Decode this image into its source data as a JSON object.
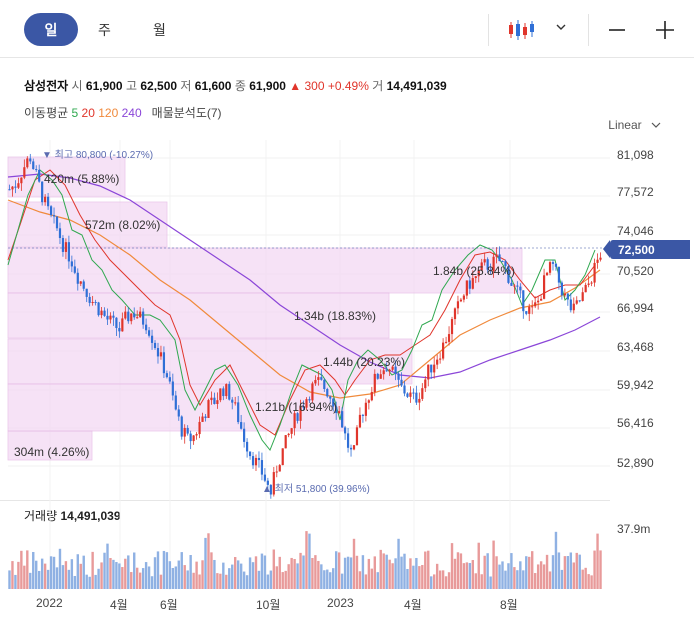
{
  "tabs": {
    "day": "일",
    "week": "주",
    "month": "월"
  },
  "stock": {
    "name": "삼성전자",
    "open_k": "시",
    "open": "61,900",
    "high_k": "고",
    "high": "62,500",
    "low_k": "저",
    "low": "61,600",
    "close_k": "종",
    "close": "61,900",
    "change": "▲ 300 +0.49%",
    "vol_k": "거",
    "volume": "14,491,039"
  },
  "ma": {
    "label": "이동평균",
    "p5": "5",
    "p20": "20",
    "p120": "120",
    "p240": "240",
    "vp": "매물분석도(7)"
  },
  "scale": "Linear",
  "last_price": "72,500",
  "high_marker": "▼ 최고 80,800 (-10.27%)",
  "low_marker": "▲ 최저 51,800 (39.96%)",
  "volume_label": {
    "label": "거래량",
    "value": "14,491,039",
    "max": "37.9m"
  },
  "colors": {
    "accent": "#3b57a5",
    "up": "#e0352b",
    "down": "#2f6fd6",
    "ma5": "#2fa84f",
    "ma20": "#e0352b",
    "ma120": "#f08a3c",
    "ma240": "#8b46d8"
  },
  "icons": {
    "chart_type": "candlestick-icon",
    "dropdown": "chevron-down-icon",
    "zoom_out": "minus-icon",
    "zoom_in": "plus-icon"
  },
  "chart_data": {
    "type": "candlestick",
    "y_ticks": [
      "81,098",
      "77,572",
      "74,046",
      "70,520",
      "66,994",
      "63,468",
      "59,942",
      "56,416",
      "52,890"
    ],
    "x_ticks": [
      "2022",
      "4월",
      "6월",
      "10월",
      "2023",
      "4월",
      "8월"
    ],
    "ylim": [
      50000,
      83000
    ],
    "close_series": [
      78000,
      78500,
      79800,
      80800,
      78900,
      77000,
      75500,
      74500,
      73000,
      72000,
      70500,
      69500,
      68500,
      67800,
      67000,
      66500,
      66000,
      67000,
      67500,
      67000,
      66500,
      65000,
      63500,
      62000,
      59500,
      57500,
      56500,
      57000,
      58500,
      59500,
      60000,
      61000,
      60500,
      59000,
      57000,
      55500,
      54500,
      53500,
      52000,
      54500,
      56000,
      57500,
      59000,
      60000,
      61000,
      61500,
      61000,
      60000,
      59000,
      56500,
      55000,
      58500,
      60000,
      61500,
      62500,
      63000,
      62000,
      61000,
      60500,
      60000,
      61000,
      62500,
      63500,
      64500,
      66000,
      67500,
      69000,
      70000,
      70500,
      71500,
      71500,
      72000,
      71500,
      70000,
      69000,
      68000,
      67500,
      68500,
      70500,
      71500,
      70000,
      68500,
      67500,
      68500,
      69500,
      71000,
      72500
    ],
    "volume_profile": [
      {
        "label": "304m (4.26%)"
      },
      {
        "label": "420m (5.88%)"
      },
      {
        "label": "572m (8.02%)"
      },
      {
        "label": "1.84b (25.84%)"
      },
      {
        "label": "1.34b (18.83%)"
      },
      {
        "label": "1.44b (20.23%)"
      },
      {
        "label": "1.21b (16.94%)"
      }
    ]
  }
}
